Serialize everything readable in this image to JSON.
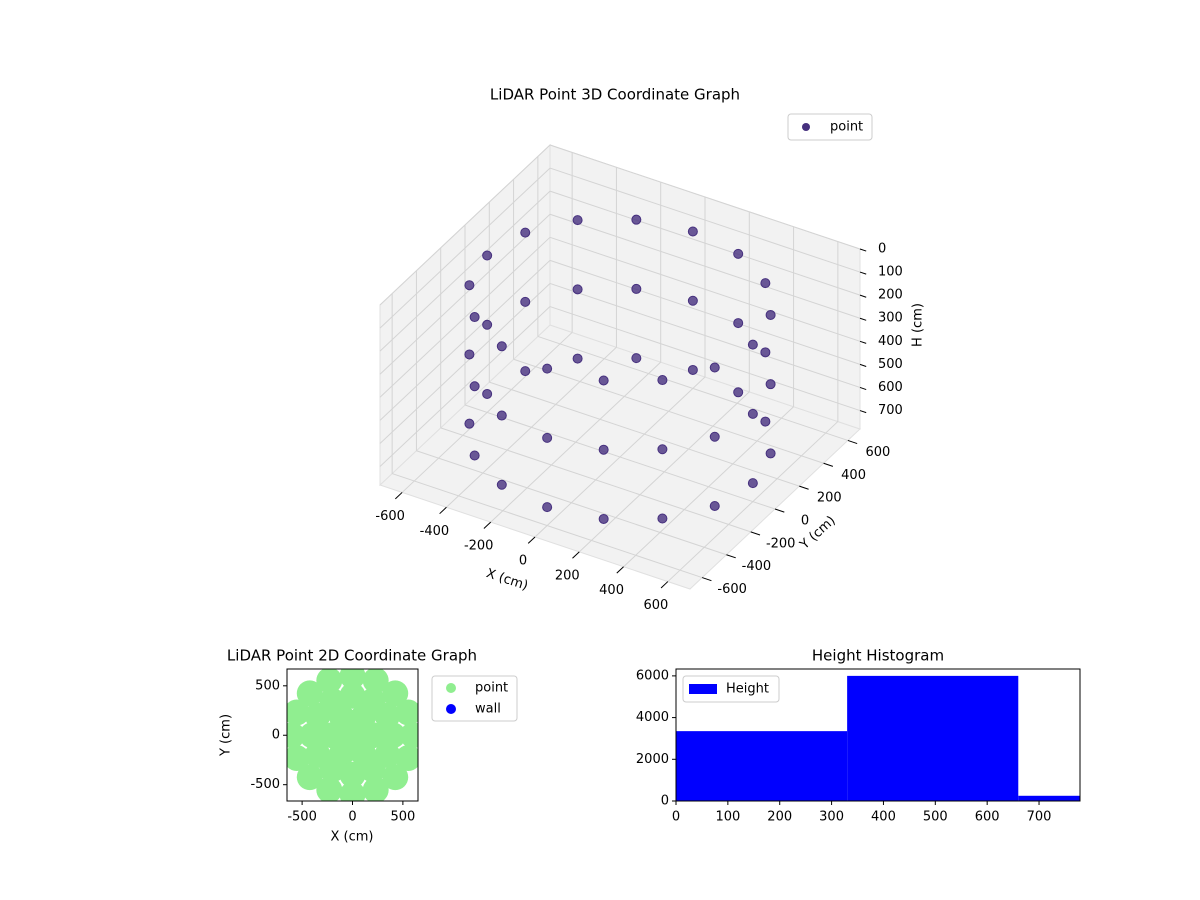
{
  "chart_data": [
    {
      "type": "scatter3d",
      "title": "LiDAR Point 3D Coordinate Graph",
      "xlabel": "X (cm)",
      "ylabel": "Y (cm)",
      "zlabel": "H (cm)",
      "xlim": [
        -700,
        700
      ],
      "ylim": [
        -700,
        700
      ],
      "zlim": [
        780,
        0
      ],
      "xticks": [
        -600,
        -400,
        -200,
        0,
        200,
        400,
        600
      ],
      "yticks": [
        -600,
        -400,
        -200,
        0,
        200,
        400,
        600
      ],
      "zticks": [
        0,
        100,
        200,
        300,
        400,
        500,
        600,
        700
      ],
      "grid": true,
      "legend": "upper right",
      "series": [
        {
          "name": "point",
          "color": "#46307e",
          "x": [
            600,
            554,
            424,
            230,
            0,
            -230,
            -424,
            -554,
            -600,
            -554,
            -424,
            -230,
            0,
            230,
            424,
            554,
            600,
            554,
            424,
            230,
            0,
            -230,
            -424,
            -554,
            -600,
            -554,
            -424,
            -230,
            0,
            230,
            424,
            554,
            600,
            554,
            424,
            230,
            0,
            -230,
            -424,
            -554,
            -600,
            -554,
            -424,
            -230,
            0,
            230,
            424,
            554
          ],
          "y": [
            0,
            230,
            424,
            554,
            600,
            554,
            424,
            230,
            0,
            -230,
            -424,
            -554,
            -600,
            -554,
            -424,
            -230,
            0,
            230,
            424,
            554,
            600,
            554,
            424,
            230,
            0,
            -230,
            -424,
            -554,
            -600,
            -554,
            -424,
            -230,
            0,
            230,
            424,
            554,
            600,
            554,
            424,
            230,
            0,
            -230,
            -424,
            -554,
            -600,
            -554,
            -424,
            -230
          ],
          "h": [
            100,
            100,
            100,
            100,
            100,
            100,
            100,
            100,
            100,
            100,
            100,
            100,
            100,
            100,
            100,
            100,
            400,
            400,
            400,
            400,
            400,
            400,
            400,
            400,
            400,
            400,
            400,
            400,
            400,
            400,
            400,
            400,
            700,
            700,
            700,
            700,
            700,
            700,
            700,
            700,
            700,
            700,
            700,
            700,
            700,
            700,
            700,
            700
          ]
        }
      ]
    },
    {
      "type": "scatter",
      "title": "LiDAR Point 2D Coordinate Graph",
      "xlabel": "X (cm)",
      "ylabel": "Y (cm)",
      "xlim": [
        -650,
        650
      ],
      "ylim": [
        -665,
        670
      ],
      "xticks": [
        -500,
        0,
        500
      ],
      "yticks": [
        -500,
        0,
        500
      ],
      "legend": "outside right",
      "series": [
        {
          "name": "point",
          "color": "#90ee90",
          "x": [
            0,
            200,
            100,
            -100,
            -200,
            -100,
            100,
            400,
            346,
            200,
            0,
            -200,
            -346,
            -400,
            -346,
            -200,
            0,
            200,
            346,
            600,
            554,
            424,
            230,
            0,
            -230,
            -424,
            -554,
            -600,
            -554,
            -424,
            -230,
            0,
            230,
            424,
            554
          ],
          "y": [
            0,
            0,
            173,
            173,
            0,
            -173,
            -173,
            0,
            200,
            346,
            400,
            346,
            200,
            0,
            -200,
            -346,
            -400,
            -346,
            -200,
            0,
            230,
            424,
            554,
            600,
            554,
            424,
            230,
            0,
            -230,
            -424,
            -554,
            -600,
            -554,
            -424,
            -230
          ]
        },
        {
          "name": "wall",
          "color": "#0000ff",
          "x": [],
          "y": []
        }
      ]
    },
    {
      "type": "histogram",
      "title": "Height Histogram",
      "bins": [
        0,
        330,
        660,
        779
      ],
      "counts": [
        3350,
        6000,
        250
      ],
      "xlim": [
        0,
        779
      ],
      "ylim": [
        0,
        6330
      ],
      "xticks": [
        0,
        100,
        200,
        300,
        400,
        500,
        600,
        700
      ],
      "yticks": [
        0,
        2000,
        4000,
        6000
      ],
      "series_name": "Height",
      "color": "#0000ff",
      "legend": "upper left"
    }
  ]
}
